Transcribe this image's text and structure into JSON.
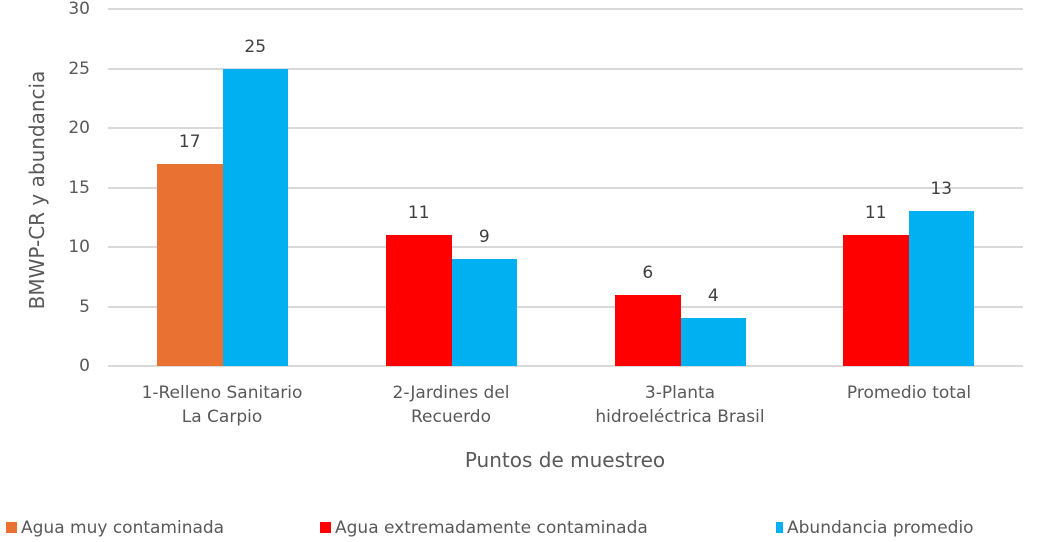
{
  "chart_data": {
    "type": "bar",
    "title": "",
    "xlabel": "Puntos de muestreo",
    "ylabel": "BMWP-CR y abundancia",
    "ylim": [
      0,
      30
    ],
    "yticks": [
      "0",
      "5",
      "10",
      "15",
      "20",
      "25",
      "30"
    ],
    "grid": true,
    "legend_position": "bottom",
    "categories": [
      [
        "1-Relleno Sanitario",
        "La Carpio"
      ],
      [
        "2-Jardines del",
        "Recuerdo"
      ],
      [
        "3-Planta",
        "hidroeléctrica Brasil"
      ],
      [
        "Promedio total"
      ]
    ],
    "series": [
      {
        "name": "Agua muy contaminada",
        "color": "#E97132",
        "values": [
          17,
          null,
          null,
          null
        ]
      },
      {
        "name": "Agua extremadamente contaminada",
        "color": "#FF0000",
        "values": [
          null,
          11,
          6,
          11
        ]
      },
      {
        "name": "Abundancia promedio",
        "color": "#00B0F0",
        "values": [
          25,
          9,
          4,
          13
        ]
      }
    ],
    "bars": [
      {
        "category": 0,
        "series": "Agua muy contaminada",
        "value": 17,
        "label": "17",
        "color": "#E97132"
      },
      {
        "category": 0,
        "series": "Abundancia promedio",
        "value": 25,
        "label": "25",
        "color": "#00B0F0"
      },
      {
        "category": 1,
        "series": "Agua extremadamente contaminada",
        "value": 11,
        "label": "11",
        "color": "#FF0000"
      },
      {
        "category": 1,
        "series": "Abundancia promedio",
        "value": 9,
        "label": "9",
        "color": "#00B0F0"
      },
      {
        "category": 2,
        "series": "Agua extremadamente contaminada",
        "value": 6,
        "label": "6",
        "color": "#FF0000"
      },
      {
        "category": 2,
        "series": "Abundancia promedio",
        "value": 4,
        "label": "4",
        "color": "#00B0F0"
      },
      {
        "category": 3,
        "series": "Agua extremadamente contaminada",
        "value": 11,
        "label": "11",
        "color": "#FF0000"
      },
      {
        "category": 3,
        "series": "Abundancia promedio",
        "value": 13,
        "label": "13",
        "color": "#00B0F0"
      }
    ]
  },
  "axis": {
    "ylabel": "BMWP-CR y abundancia",
    "xlabel": "Puntos de muestreo"
  },
  "legend": [
    {
      "label": "Agua muy contaminada",
      "color": "#E97132"
    },
    {
      "label": "Agua extremadamente contaminada",
      "color": "#FF0000"
    },
    {
      "label": "Abundancia promedio",
      "color": "#00B0F0"
    }
  ]
}
